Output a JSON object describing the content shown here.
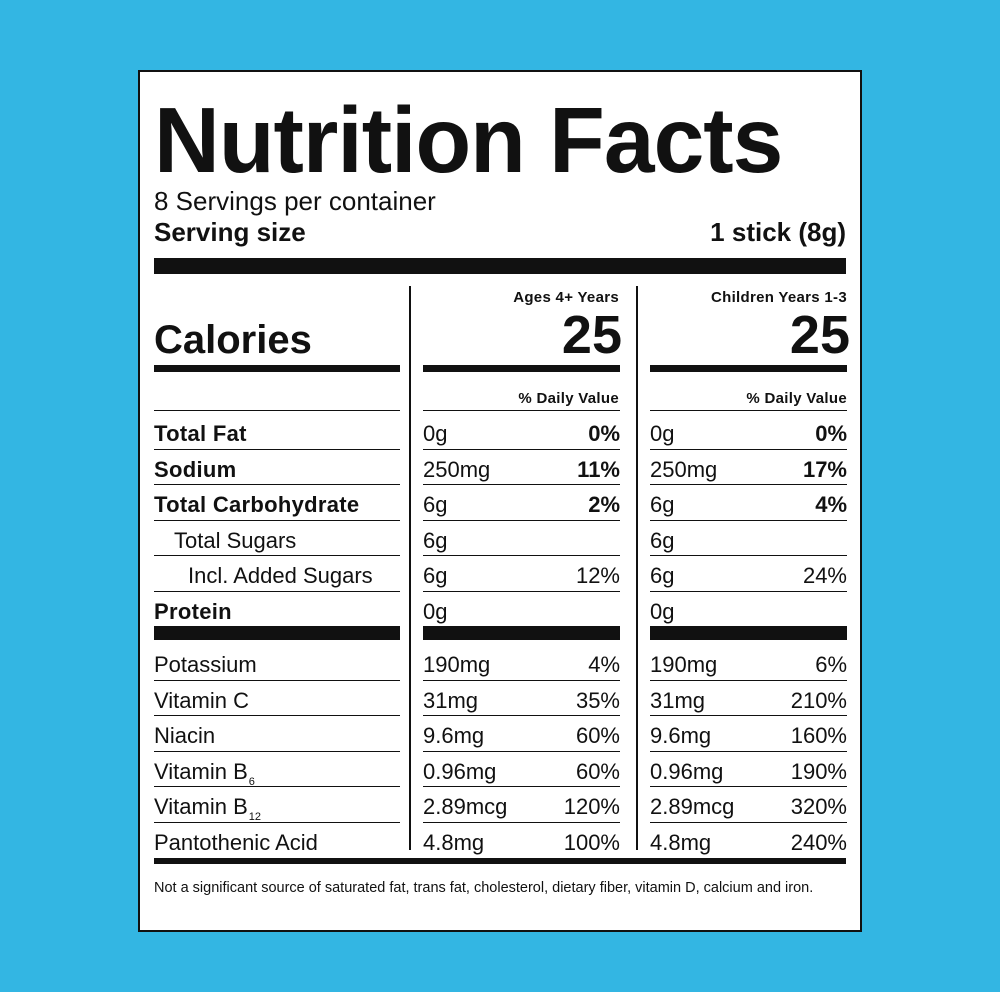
{
  "title": "Nutrition Facts",
  "servings_per_container": "8 Servings per container",
  "serving_size_label": "Serving size",
  "serving_size_value": "1 stick (8g)",
  "calories_label": "Calories",
  "columns": [
    {
      "header": "Ages 4+ Years",
      "calories": "25",
      "dv_header": "% Daily Value"
    },
    {
      "header": "Children Years 1-3",
      "calories": "25",
      "dv_header": "% Daily Value"
    }
  ],
  "nutrients": [
    {
      "label": "Total Fat",
      "bold": true,
      "indent": 0,
      "sub": "",
      "c1_amount": "0g",
      "c1_dv": "0%",
      "c2_amount": "0g",
      "c2_dv": "0%"
    },
    {
      "label": "Sodium",
      "bold": true,
      "indent": 0,
      "sub": "",
      "c1_amount": "250mg",
      "c1_dv": "11%",
      "c2_amount": "250mg",
      "c2_dv": "17%"
    },
    {
      "label": "Total Carbohydrate",
      "bold": true,
      "indent": 0,
      "sub": "",
      "c1_amount": "6g",
      "c1_dv": "2%",
      "c2_amount": "6g",
      "c2_dv": "4%"
    },
    {
      "label": "Total Sugars",
      "bold": false,
      "indent": 1,
      "sub": "",
      "c1_amount": "6g",
      "c1_dv": "",
      "c2_amount": "6g",
      "c2_dv": ""
    },
    {
      "label": "Incl. Added Sugars",
      "bold": false,
      "indent": 2,
      "sub": "",
      "c1_amount": "6g",
      "c1_dv": "12%",
      "c2_amount": "6g",
      "c2_dv": "24%"
    },
    {
      "label": "Protein",
      "bold": true,
      "indent": 0,
      "sub": "",
      "c1_amount": "0g",
      "c1_dv": "",
      "c2_amount": "0g",
      "c2_dv": ""
    }
  ],
  "vitamins": [
    {
      "label": "Potassium",
      "sub": "",
      "c1_amount": "190mg",
      "c1_dv": "4%",
      "c2_amount": "190mg",
      "c2_dv": "6%"
    },
    {
      "label": "Vitamin C",
      "sub": "",
      "c1_amount": "31mg",
      "c1_dv": "35%",
      "c2_amount": "31mg",
      "c2_dv": "210%"
    },
    {
      "label": "Niacin",
      "sub": "",
      "c1_amount": "9.6mg",
      "c1_dv": "60%",
      "c2_amount": "9.6mg",
      "c2_dv": "160%"
    },
    {
      "label": "Vitamin B",
      "sub": "6",
      "c1_amount": "0.96mg",
      "c1_dv": "60%",
      "c2_amount": "0.96mg",
      "c2_dv": "190%"
    },
    {
      "label": "Vitamin B",
      "sub": "12",
      "c1_amount": "2.89mcg",
      "c1_dv": "120%",
      "c2_amount": "2.89mcg",
      "c2_dv": "320%"
    },
    {
      "label": "Pantothenic Acid",
      "sub": "",
      "c1_amount": "4.8mg",
      "c1_dv": "100%",
      "c2_amount": "4.8mg",
      "c2_dv": "240%"
    }
  ],
  "footnote": "Not a significant source of saturated fat, trans fat, cholesterol, dietary fiber, vitamin D, calcium and iron.",
  "colors": {
    "background": "#33b6e3",
    "label": "#ffffff",
    "ink": "#111111"
  }
}
